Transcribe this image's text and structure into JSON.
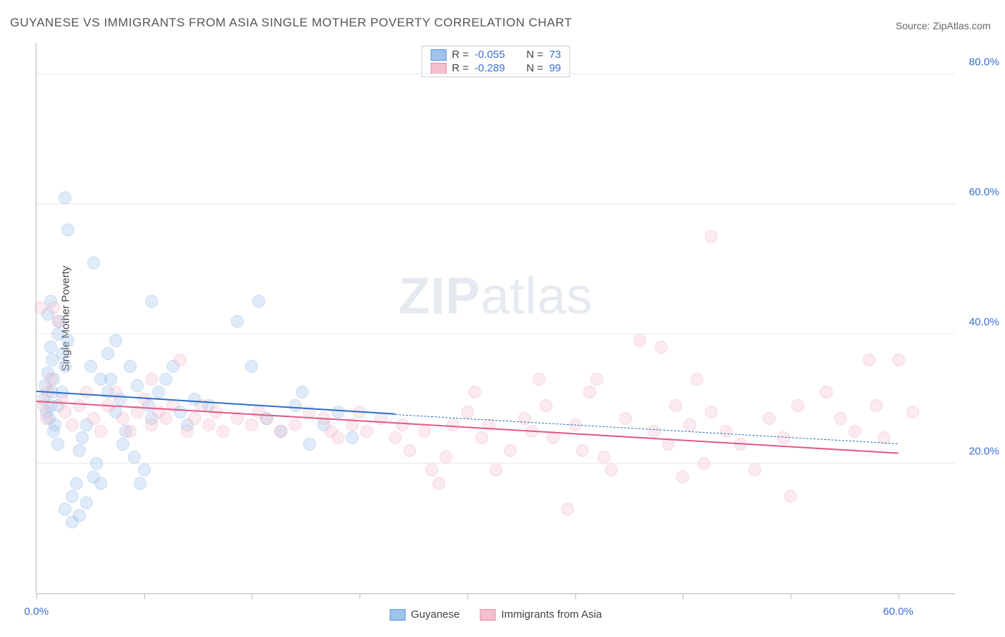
{
  "title": "GUYANESE VS IMMIGRANTS FROM ASIA SINGLE MOTHER POVERTY CORRELATION CHART",
  "source_label": "Source:",
  "source_name": "ZipAtlas.com",
  "ylabel": "Single Mother Poverty",
  "watermark_bold": "ZIP",
  "watermark_rest": "atlas",
  "chart": {
    "type": "scatter",
    "background_color": "#ffffff",
    "grid_color": "#e8e8e8",
    "axis_color": "#bbbbbb",
    "tick_label_color": "#3b6fd4",
    "xlim": [
      0,
      64
    ],
    "ylim": [
      0,
      85
    ],
    "xticks": [
      0,
      7.5,
      15,
      22.5,
      30,
      37.5,
      45,
      52.5,
      60
    ],
    "xtick_labels": {
      "0": "0.0%",
      "60": "60.0%"
    },
    "yticks": [
      20,
      40,
      60,
      80
    ],
    "ytick_labels": {
      "20": "20.0%",
      "40": "40.0%",
      "60": "60.0%",
      "80": "80.0%"
    },
    "marker_radius": 9,
    "marker_opacity": 0.32,
    "marker_border_opacity": 0.6,
    "series": [
      {
        "key": "guyanese",
        "label": "Guyanese",
        "fill_color": "#9ec3ed",
        "stroke_color": "#5a94d8",
        "line_color": "#2b6fc9",
        "R": "-0.055",
        "N": "73",
        "trend": {
          "x1": 0,
          "y1": 31,
          "x2": 25,
          "y2": 27.5,
          "dash_to_x": 60,
          "dash_to_y": 23
        },
        "points": [
          [
            0.5,
            30
          ],
          [
            0.6,
            32
          ],
          [
            0.7,
            28
          ],
          [
            0.8,
            34
          ],
          [
            0.9,
            27
          ],
          [
            1,
            29
          ],
          [
            1.1,
            31
          ],
          [
            1.2,
            33
          ],
          [
            1.3,
            26
          ],
          [
            1,
            38
          ],
          [
            1.1,
            36
          ],
          [
            1.5,
            40
          ],
          [
            1.6,
            42
          ],
          [
            1.8,
            37
          ],
          [
            2,
            35
          ],
          [
            2.2,
            39
          ],
          [
            1.2,
            25
          ],
          [
            1.5,
            23
          ],
          [
            2,
            61
          ],
          [
            2.2,
            56
          ],
          [
            4,
            51
          ],
          [
            2,
            13
          ],
          [
            2.5,
            15
          ],
          [
            2.8,
            17
          ],
          [
            3,
            22
          ],
          [
            3.2,
            24
          ],
          [
            3.5,
            26
          ],
          [
            1.5,
            29
          ],
          [
            1.8,
            31
          ],
          [
            4,
            18
          ],
          [
            4.2,
            20
          ],
          [
            4.5,
            17
          ],
          [
            3,
            12
          ],
          [
            3.5,
            14
          ],
          [
            5,
            31
          ],
          [
            5.2,
            33
          ],
          [
            5.5,
            28
          ],
          [
            5.8,
            30
          ],
          [
            6,
            23
          ],
          [
            6.2,
            25
          ],
          [
            6.5,
            35
          ],
          [
            7,
            32
          ],
          [
            7.2,
            17
          ],
          [
            7.5,
            19
          ],
          [
            7.8,
            29
          ],
          [
            8,
            27
          ],
          [
            8.5,
            31
          ],
          [
            9,
            33
          ],
          [
            5,
            37
          ],
          [
            5.5,
            39
          ],
          [
            8,
            45
          ],
          [
            10,
            28
          ],
          [
            10.5,
            26
          ],
          [
            11,
            30
          ],
          [
            12,
            29
          ],
          [
            14,
            42
          ],
          [
            15,
            35
          ],
          [
            15.5,
            45
          ],
          [
            16,
            27
          ],
          [
            17,
            25
          ],
          [
            18,
            29
          ],
          [
            18.5,
            31
          ],
          [
            19,
            23
          ],
          [
            20,
            26
          ],
          [
            21,
            28
          ],
          [
            22,
            24
          ],
          [
            0.8,
            43
          ],
          [
            1,
            45
          ],
          [
            4.5,
            33
          ],
          [
            3.8,
            35
          ],
          [
            2.5,
            11
          ],
          [
            6.8,
            21
          ],
          [
            9.5,
            35
          ]
        ]
      },
      {
        "key": "immigrants_asia",
        "label": "Immigrants from Asia",
        "fill_color": "#f4c0cc",
        "stroke_color": "#e88aa3",
        "line_color": "#e15a85",
        "R": "-0.289",
        "N": "99",
        "trend": {
          "x1": 0,
          "y1": 29.5,
          "x2": 60,
          "y2": 21.5
        },
        "points": [
          [
            0.5,
            29
          ],
          [
            0.8,
            31
          ],
          [
            1,
            33
          ],
          [
            1.2,
            44
          ],
          [
            1.5,
            42
          ],
          [
            0.7,
            27
          ],
          [
            1.8,
            30
          ],
          [
            0.3,
            44
          ],
          [
            2,
            28
          ],
          [
            2.5,
            26
          ],
          [
            3,
            29
          ],
          [
            3.5,
            31
          ],
          [
            4,
            27
          ],
          [
            4.5,
            25
          ],
          [
            5,
            29
          ],
          [
            5.5,
            31
          ],
          [
            6,
            27
          ],
          [
            6.5,
            25
          ],
          [
            7,
            28
          ],
          [
            7.5,
            30
          ],
          [
            8,
            26
          ],
          [
            8.5,
            28
          ],
          [
            9,
            27
          ],
          [
            9.5,
            29
          ],
          [
            10,
            36
          ],
          [
            10.5,
            25
          ],
          [
            11,
            27
          ],
          [
            11.5,
            29
          ],
          [
            12,
            26
          ],
          [
            12.5,
            28
          ],
          [
            13,
            25
          ],
          [
            14,
            27
          ],
          [
            15,
            26
          ],
          [
            15.5,
            28
          ],
          [
            16,
            27
          ],
          [
            17,
            25
          ],
          [
            18,
            26
          ],
          [
            19,
            28
          ],
          [
            20,
            27
          ],
          [
            20.5,
            25
          ],
          [
            21,
            24
          ],
          [
            22,
            26
          ],
          [
            22.5,
            28
          ],
          [
            23,
            25
          ],
          [
            24,
            27
          ],
          [
            25,
            24
          ],
          [
            25.5,
            26
          ],
          [
            26,
            22
          ],
          [
            27,
            25
          ],
          [
            27.5,
            19
          ],
          [
            28,
            17
          ],
          [
            28.5,
            21
          ],
          [
            29,
            26
          ],
          [
            30,
            28
          ],
          [
            30.5,
            31
          ],
          [
            31,
            24
          ],
          [
            31.5,
            26
          ],
          [
            32,
            19
          ],
          [
            33,
            22
          ],
          [
            34,
            27
          ],
          [
            34.5,
            25
          ],
          [
            35,
            33
          ],
          [
            35.5,
            29
          ],
          [
            36,
            24
          ],
          [
            37,
            13
          ],
          [
            37.5,
            26
          ],
          [
            38,
            22
          ],
          [
            38.5,
            31
          ],
          [
            39,
            33
          ],
          [
            39.5,
            21
          ],
          [
            40,
            19
          ],
          [
            41,
            27
          ],
          [
            42,
            39
          ],
          [
            43,
            25
          ],
          [
            43.5,
            38
          ],
          [
            44,
            23
          ],
          [
            44.5,
            29
          ],
          [
            45,
            18
          ],
          [
            45.5,
            26
          ],
          [
            46,
            33
          ],
          [
            46.5,
            20
          ],
          [
            47,
            28
          ],
          [
            47,
            55
          ],
          [
            48,
            25
          ],
          [
            49,
            23
          ],
          [
            50,
            19
          ],
          [
            51,
            27
          ],
          [
            52,
            24
          ],
          [
            52.5,
            15
          ],
          [
            53,
            29
          ],
          [
            55,
            31
          ],
          [
            56,
            27
          ],
          [
            57,
            25
          ],
          [
            58,
            36
          ],
          [
            58.5,
            29
          ],
          [
            59,
            24
          ],
          [
            60,
            36
          ],
          [
            61,
            28
          ],
          [
            8,
            33
          ]
        ]
      }
    ],
    "legend_top": {
      "border_color": "#cccccc",
      "R_label": "R =",
      "N_label": "N ="
    },
    "legend_bottom": {}
  }
}
